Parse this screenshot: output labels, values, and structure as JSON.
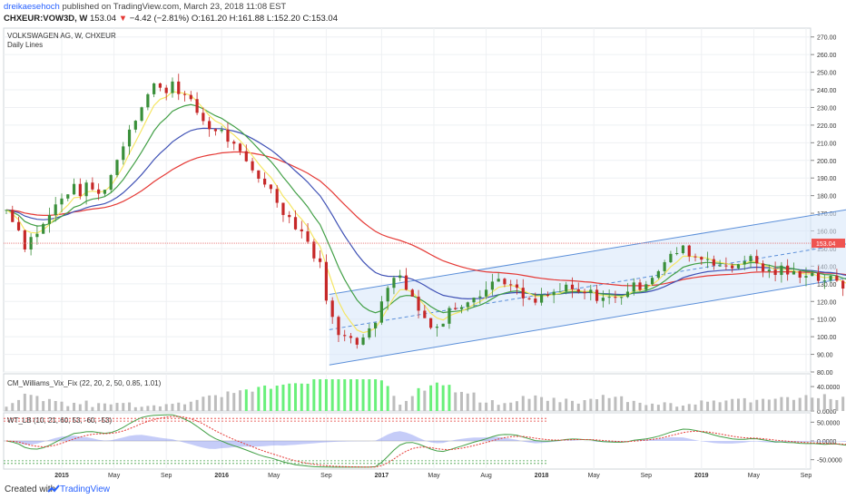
{
  "header": {
    "author": "dreikaesehoch",
    "published": "published on TradingView.com, March 23, 2018 11:08 EST",
    "symbol": "CHXEUR:VOW3D, W",
    "price": "153.04",
    "arrow": "▼",
    "change": "−4.42 (−2.81%)",
    "ohlc": "O:161.20 H:161.88 L:152.20 C:153.04"
  },
  "footer": {
    "created_with": "Created with",
    "brand": "TradingView"
  },
  "colors": {
    "up": "#26a69a",
    "down": "#ef5350",
    "ema_fast": "#f5e663",
    "ema_green": "#43a047",
    "ema_blue": "#3f51b5",
    "ema_red": "#e53935",
    "channel_fill": "#d6e6fa",
    "channel_line": "#5b8fd9",
    "histogram_high": "#69f07a",
    "histogram_low": "#bdbdbd",
    "accent": "#2962ff"
  },
  "chart_data": [
    {
      "type": "candlestick",
      "title": "VOLKSWAGEN AG, W, CHXEUR",
      "subtitle": "Daily Lines",
      "last_price_label": "153.04",
      "ylim": [
        80,
        275
      ],
      "y_ticks": [
        "270.00",
        "260.00",
        "250.00",
        "240.00",
        "230.00",
        "220.00",
        "210.00",
        "200.00",
        "190.00",
        "180.00",
        "170.00",
        "160.00",
        "150.00",
        "140.00",
        "130.00",
        "120.00",
        "110.00",
        "100.00",
        "90.00",
        "80.00"
      ],
      "x_ticks": [
        "2015",
        "May",
        "Sep",
        "2016",
        "May",
        "Sep",
        "2017",
        "May",
        "Aug",
        "2018",
        "May",
        "Sep",
        "2019",
        "May",
        "Sep"
      ],
      "close_path": [
        [
          0,
          172
        ],
        [
          3,
          165
        ],
        [
          6,
          152
        ],
        [
          9,
          158
        ],
        [
          12,
          163
        ],
        [
          15,
          172
        ],
        [
          18,
          178
        ],
        [
          21,
          185
        ],
        [
          24,
          182
        ],
        [
          27,
          186
        ],
        [
          30,
          180
        ],
        [
          33,
          188
        ],
        [
          36,
          200
        ],
        [
          39,
          215
        ],
        [
          42,
          225
        ],
        [
          45,
          235
        ],
        [
          48,
          243
        ],
        [
          51,
          238
        ],
        [
          54,
          245
        ],
        [
          57,
          238
        ],
        [
          60,
          232
        ],
        [
          63,
          225
        ],
        [
          66,
          218
        ],
        [
          69,
          218
        ],
        [
          72,
          212
        ],
        [
          75,
          205
        ],
        [
          78,
          198
        ],
        [
          81,
          192
        ],
        [
          84,
          188
        ],
        [
          87,
          180
        ],
        [
          90,
          172
        ],
        [
          93,
          165
        ],
        [
          96,
          160
        ],
        [
          99,
          150
        ],
        [
          102,
          140
        ],
        [
          105,
          115
        ],
        [
          108,
          100
        ],
        [
          111,
          103
        ],
        [
          114,
          98
        ],
        [
          117,
          100
        ],
        [
          120,
          108
        ],
        [
          123,
          128
        ],
        [
          126,
          135
        ],
        [
          129,
          132
        ],
        [
          132,
          122
        ],
        [
          135,
          112
        ],
        [
          138,
          108
        ],
        [
          141,
          105
        ],
        [
          144,
          115
        ],
        [
          147,
          118
        ],
        [
          150,
          122
        ],
        [
          153,
          125
        ],
        [
          156,
          127
        ],
        [
          159,
          133
        ],
        [
          162,
          132
        ],
        [
          165,
          127
        ],
        [
          168,
          122
        ],
        [
          171,
          118
        ],
        [
          174,
          122
        ],
        [
          177,
          124
        ],
        [
          180,
          126
        ],
        [
          183,
          127
        ],
        [
          186,
          124
        ],
        [
          189,
          125
        ],
        [
          192,
          123
        ],
        [
          195,
          122
        ],
        [
          198,
          121
        ],
        [
          201,
          126
        ],
        [
          204,
          128
        ],
        [
          207,
          130
        ],
        [
          210,
          135
        ],
        [
          213,
          140
        ],
        [
          216,
          145
        ],
        [
          219,
          150
        ],
        [
          222,
          148
        ],
        [
          225,
          144
        ],
        [
          228,
          145
        ],
        [
          231,
          142
        ],
        [
          234,
          138
        ],
        [
          237,
          140
        ],
        [
          240,
          145
        ],
        [
          243,
          143
        ],
        [
          246,
          138
        ],
        [
          249,
          136
        ],
        [
          252,
          138
        ],
        [
          255,
          135
        ],
        [
          258,
          136
        ],
        [
          261,
          137
        ],
        [
          264,
          133
        ],
        [
          267,
          133
        ],
        [
          270,
          130
        ],
        [
          273,
          128
        ],
        [
          276,
          133
        ],
        [
          279,
          138
        ],
        [
          282,
          143
        ],
        [
          285,
          150
        ],
        [
          288,
          160
        ],
        [
          291,
          170
        ],
        [
          294,
          175
        ],
        [
          297,
          178
        ],
        [
          300,
          176
        ],
        [
          303,
          182
        ],
        [
          306,
          180
        ],
        [
          309,
          170
        ],
        [
          312,
          165
        ],
        [
          315,
          162
        ],
        [
          318,
          158
        ],
        [
          321,
          155
        ],
        [
          324,
          153
        ]
      ],
      "total_span_weeks": 468,
      "ema_fast_seed": 0.35,
      "ema_green_seed": 0.18,
      "ema_blue_seed": 0.09,
      "ema_red_seed": 0.045,
      "channel": {
        "lower_start": [
          105,
          84
        ],
        "lower_end": [
          392,
          168
        ],
        "upper_start": [
          105,
          124
        ],
        "upper_end": [
          392,
          206
        ]
      }
    },
    {
      "type": "bar",
      "title": "CM_Williams_Vix_Fix (22, 20, 2, 50, 0.85, 1.01)",
      "y_ticks": [
        "40.0000",
        "0.0000"
      ],
      "ylim": [
        0,
        55
      ]
    },
    {
      "type": "line",
      "title": "WT_LB (10, 21, 60, 53, -60, -53)",
      "y_ticks": [
        "50.0000",
        "0.0000",
        "-50.0000"
      ],
      "ylim": [
        -75,
        75
      ],
      "levels": [
        60,
        53,
        -53,
        -60
      ]
    }
  ]
}
